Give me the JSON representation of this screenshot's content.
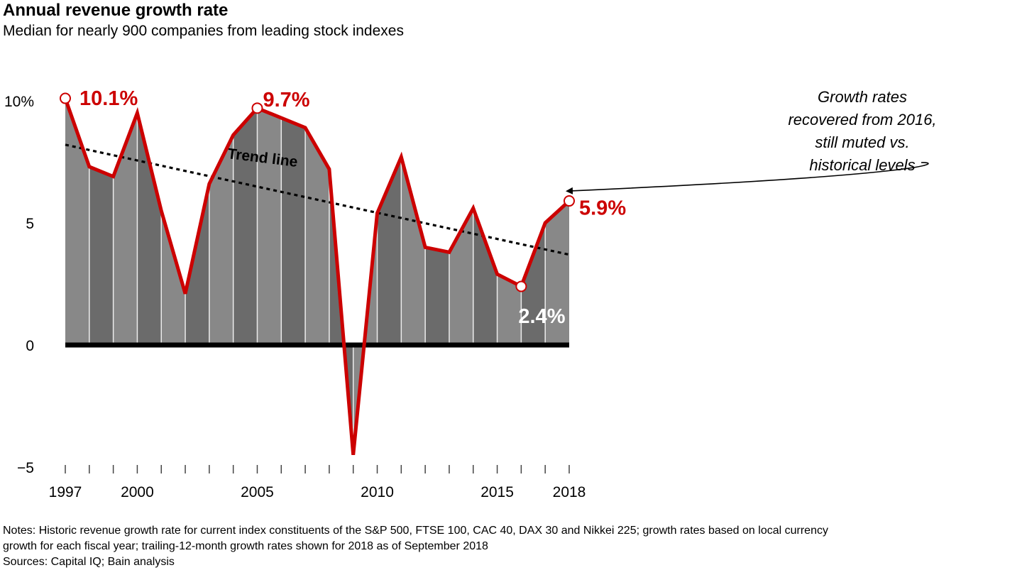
{
  "header": {
    "title": "Annual revenue growth rate",
    "subtitle": "Median for nearly 900 companies from leading stock indexes"
  },
  "chart_data": {
    "type": "area",
    "title": "Annual revenue growth rate",
    "subtitle": "Median for nearly 900 companies from leading stock indexes",
    "xlabel": "",
    "ylabel": "",
    "x": [
      1997,
      1998,
      1999,
      2000,
      2001,
      2002,
      2003,
      2004,
      2005,
      2006,
      2007,
      2008,
      2009,
      2010,
      2011,
      2012,
      2013,
      2014,
      2015,
      2016,
      2017,
      2018
    ],
    "series": [
      {
        "name": "Median annual revenue growth rate (%)",
        "values": [
          10.1,
          7.3,
          6.9,
          9.5,
          5.5,
          2.1,
          6.6,
          8.6,
          9.7,
          9.3,
          8.9,
          7.2,
          -4.5,
          5.4,
          7.7,
          4.0,
          3.8,
          5.6,
          2.9,
          2.4,
          5.0,
          5.9
        ]
      }
    ],
    "trend_line": {
      "label": "Trend line",
      "start": {
        "x": 1997,
        "y": 8.2
      },
      "end": {
        "x": 2018,
        "y": 3.7
      }
    },
    "ylim": [
      -5,
      10
    ],
    "y_ticks": [
      {
        "value": 10,
        "label": "10%"
      },
      {
        "value": 5,
        "label": "5"
      },
      {
        "value": 0,
        "label": "0"
      },
      {
        "value": -5,
        "label": "−5"
      }
    ],
    "x_tick_labels": [
      {
        "value": 1997,
        "label": "1997"
      },
      {
        "value": 2000,
        "label": "2000"
      },
      {
        "value": 2005,
        "label": "2005"
      },
      {
        "value": 2010,
        "label": "2010"
      },
      {
        "value": 2015,
        "label": "2015"
      },
      {
        "value": 2018,
        "label": "2018"
      }
    ],
    "highlighted_points": [
      {
        "x": 1997,
        "label": "10.1%",
        "color": "#cc0000"
      },
      {
        "x": 2005,
        "label": "9.7%",
        "color": "#cc0000"
      },
      {
        "x": 2016,
        "label": "2.4%",
        "color": "#ffffff"
      },
      {
        "x": 2018,
        "label": "5.9%",
        "color": "#cc0000"
      }
    ],
    "annotation": {
      "lines": [
        "Growth rates",
        "recovered from 2016,",
        "still muted vs.",
        "historical levels"
      ],
      "points_to": 2018
    },
    "grid": false,
    "legend": "none",
    "colors": {
      "line": "#cc0000",
      "fill_light": "#888888",
      "fill_dark": "#6b6b6b",
      "zero_line": "#000000",
      "trend": "#000000"
    }
  },
  "footer": {
    "notes": [
      "Notes: Historic revenue growth rate for current index constituents of the S&P 500, FTSE 100, CAC 40, DAX 30 and Nikkei 225; growth rates based on local currency",
      "growth for each fiscal year; trailing-12-month growth rates shown for 2018 as of September 2018"
    ],
    "sources": "Sources: Capital IQ; Bain analysis"
  }
}
